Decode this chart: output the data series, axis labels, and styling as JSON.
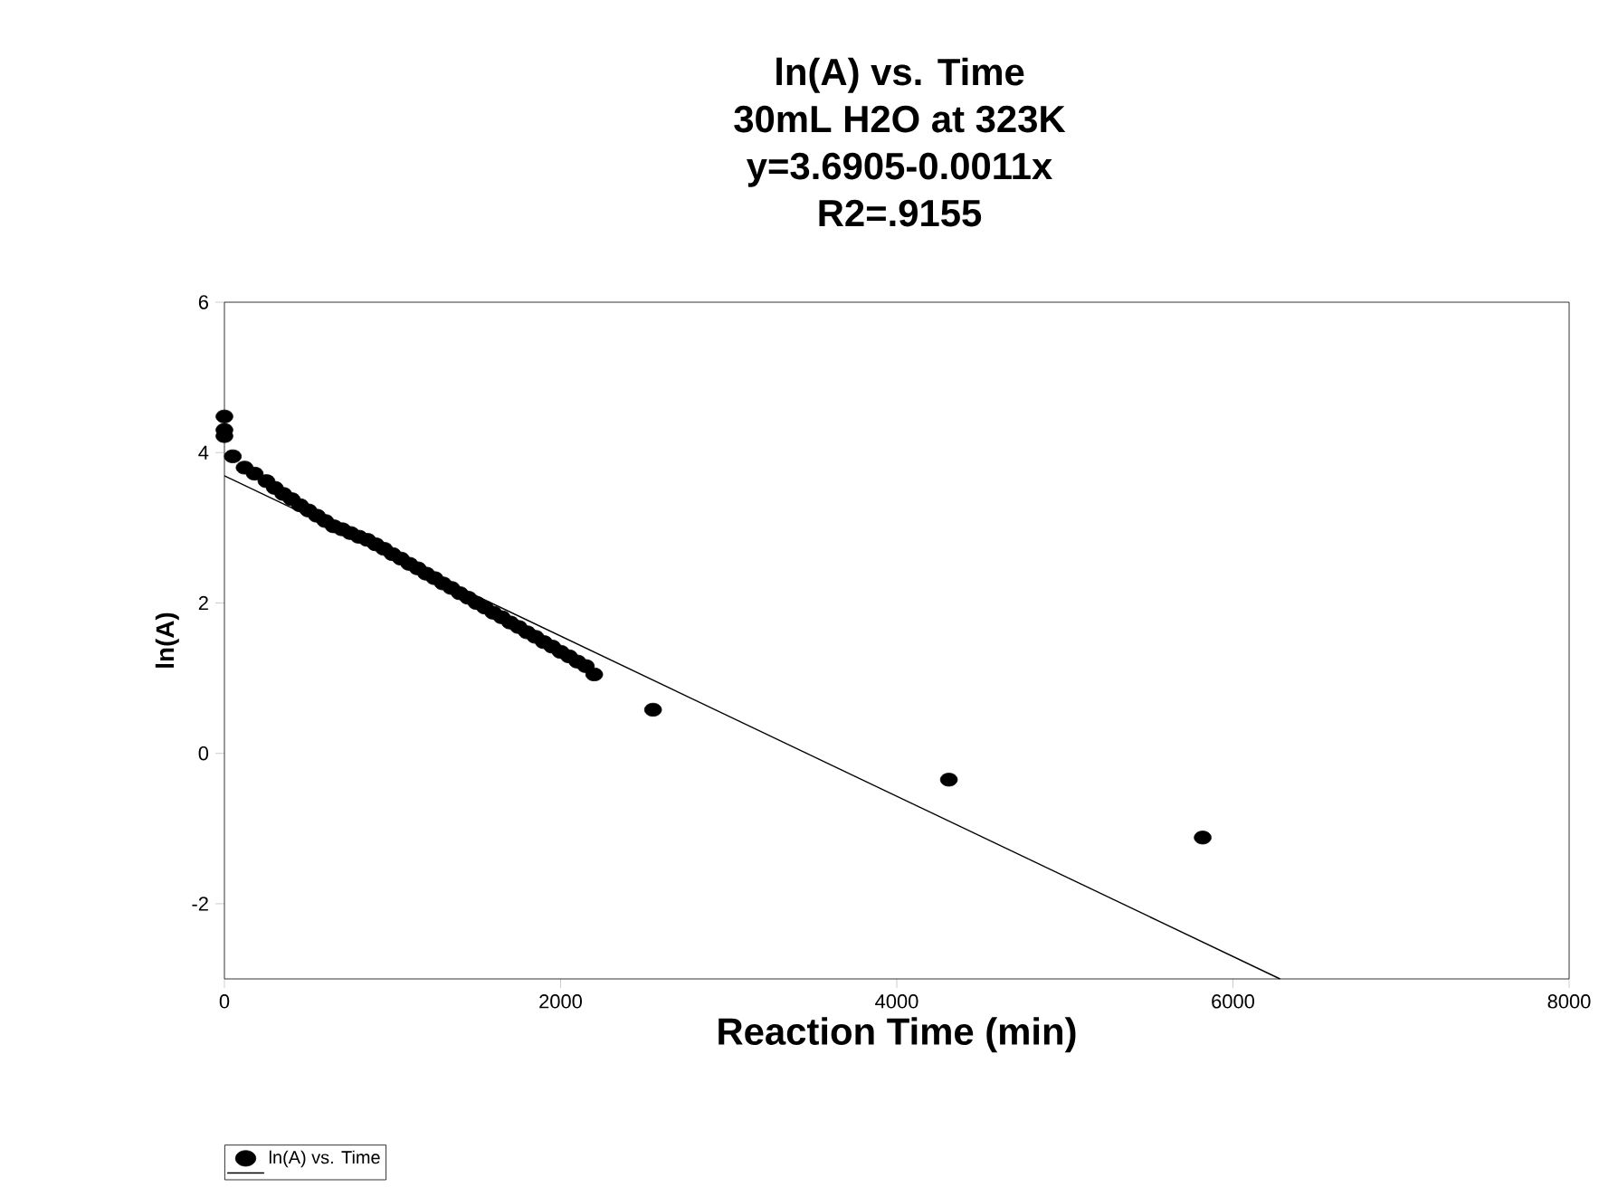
{
  "chart_data": {
    "type": "scatter",
    "title": "ln(A) vs. Time",
    "subtitle": "30mL H2O at 323K",
    "annotations": [
      "y=3.6905-0.0011x",
      "R2=.9155"
    ],
    "xlabel": "Reaction Time (min)",
    "ylabel": "ln(A)",
    "xlim": [
      0,
      8000
    ],
    "ylim": [
      -3,
      6
    ],
    "xticks": [
      0,
      2000,
      4000,
      6000,
      8000
    ],
    "yticks": [
      -2,
      0,
      2,
      4,
      6
    ],
    "legend": "bottom left",
    "grid": false,
    "series": [
      {
        "name": "ln(A) vs. Time",
        "marker": "circle",
        "color": "#000000",
        "x": [
          0,
          0,
          0,
          50,
          120,
          180,
          250,
          300,
          350,
          400,
          450,
          500,
          550,
          600,
          650,
          700,
          750,
          800,
          850,
          900,
          950,
          1000,
          1050,
          1100,
          1150,
          1200,
          1250,
          1300,
          1350,
          1400,
          1450,
          1500,
          1550,
          1600,
          1650,
          1700,
          1750,
          1800,
          1850,
          1900,
          1950,
          2000,
          2050,
          2100,
          2150,
          2200,
          2550,
          4310,
          5820
        ],
        "values": [
          4.48,
          4.3,
          4.22,
          3.95,
          3.8,
          3.72,
          3.62,
          3.53,
          3.45,
          3.38,
          3.3,
          3.23,
          3.16,
          3.09,
          3.02,
          2.98,
          2.93,
          2.88,
          2.84,
          2.78,
          2.72,
          2.65,
          2.59,
          2.52,
          2.46,
          2.39,
          2.33,
          2.26,
          2.2,
          2.13,
          2.07,
          2.0,
          1.94,
          1.87,
          1.81,
          1.74,
          1.68,
          1.61,
          1.55,
          1.48,
          1.42,
          1.35,
          1.29,
          1.22,
          1.16,
          1.05,
          0.58,
          -0.35,
          -1.12
        ]
      },
      {
        "type": "line",
        "marker": "none",
        "line_style": "solid",
        "color": "#000000",
        "x": [
          0,
          6280
        ],
        "values": [
          3.6905,
          -3.0
        ]
      }
    ]
  }
}
